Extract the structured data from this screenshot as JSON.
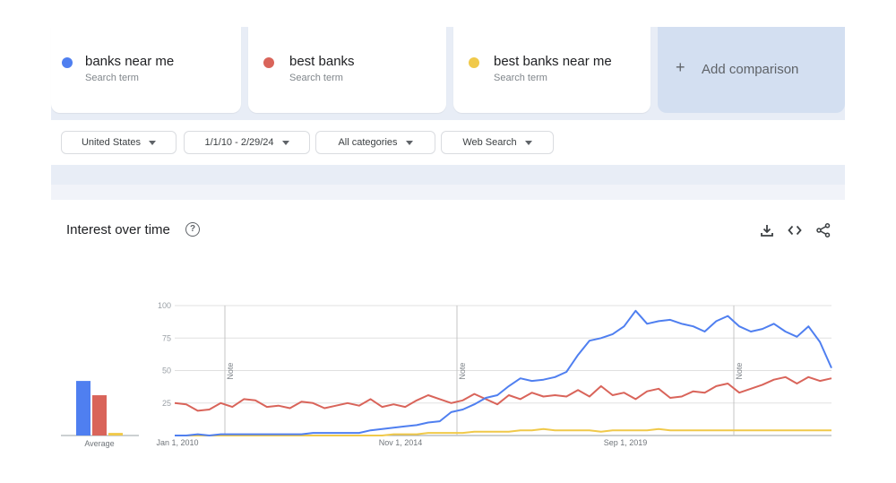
{
  "terms": [
    {
      "label": "banks near me",
      "sublabel": "Search term",
      "color": "#4f7ff0"
    },
    {
      "label": "best banks",
      "sublabel": "Search term",
      "color": "#d9645a"
    },
    {
      "label": "best banks near me",
      "sublabel": "Search term",
      "color": "#f0c94a"
    }
  ],
  "add_comparison": {
    "label": "Add comparison",
    "icon": "plus-icon"
  },
  "filters": {
    "region": "United States",
    "date_range": "1/1/10 - 2/29/24",
    "category": "All categories",
    "search_type": "Web Search"
  },
  "panel": {
    "title": "Interest over time",
    "help_icon": "help-circle-icon",
    "actions": [
      "download-icon",
      "embed-code-icon",
      "share-icon"
    ]
  },
  "chart_data": {
    "type": "line",
    "title": "Interest over time",
    "xlabel": "",
    "ylabel": "",
    "ylim": [
      0,
      100
    ],
    "yticks": [
      "100",
      "75",
      "50",
      "25"
    ],
    "xtick_labels": [
      "Jan 1, 2010",
      "Nov 1, 2014",
      "Sep 1, 2019"
    ],
    "note_markers": [
      "Note",
      "Note",
      "Note"
    ],
    "grid": true,
    "legend": "top cards",
    "average_label": "Average",
    "averages": [
      {
        "name": "banks near me",
        "value": 42
      },
      {
        "name": "best banks",
        "value": 31
      },
      {
        "name": "best banks near me",
        "value": 2
      }
    ],
    "x": [
      "2010-01",
      "2010-04",
      "2010-07",
      "2010-10",
      "2011-01",
      "2011-04",
      "2011-07",
      "2011-10",
      "2012-01",
      "2012-04",
      "2012-07",
      "2012-10",
      "2013-01",
      "2013-04",
      "2013-07",
      "2013-10",
      "2014-01",
      "2014-04",
      "2014-07",
      "2014-10",
      "2015-01",
      "2015-04",
      "2015-07",
      "2015-10",
      "2016-01",
      "2016-04",
      "2016-07",
      "2016-10",
      "2017-01",
      "2017-04",
      "2017-07",
      "2017-10",
      "2018-01",
      "2018-04",
      "2018-07",
      "2018-10",
      "2019-01",
      "2019-04",
      "2019-07",
      "2019-10",
      "2020-01",
      "2020-04",
      "2020-07",
      "2020-10",
      "2021-01",
      "2021-04",
      "2021-07",
      "2021-10",
      "2022-01",
      "2022-04",
      "2022-07",
      "2022-10",
      "2023-01",
      "2023-04",
      "2023-07",
      "2023-10",
      "2024-01",
      "2024-02"
    ],
    "series": [
      {
        "name": "banks near me",
        "color": "#4f7ff0",
        "values": [
          0,
          0,
          1,
          0,
          1,
          1,
          1,
          1,
          1,
          1,
          1,
          1,
          2,
          2,
          2,
          2,
          2,
          4,
          5,
          6,
          7,
          8,
          10,
          11,
          18,
          20,
          24,
          29,
          31,
          38,
          44,
          42,
          43,
          45,
          49,
          62,
          73,
          75,
          78,
          84,
          96,
          86,
          88,
          89,
          86,
          84,
          80,
          88,
          92,
          84,
          80,
          82,
          86,
          80,
          76,
          84,
          72,
          52
        ]
      },
      {
        "name": "best banks",
        "color": "#d9645a",
        "values": [
          25,
          24,
          19,
          20,
          25,
          22,
          28,
          27,
          22,
          23,
          21,
          26,
          25,
          21,
          23,
          25,
          23,
          28,
          22,
          24,
          22,
          27,
          31,
          28,
          25,
          27,
          32,
          28,
          24,
          31,
          28,
          33,
          30,
          31,
          30,
          35,
          30,
          38,
          31,
          33,
          28,
          34,
          36,
          29,
          30,
          34,
          33,
          38,
          40,
          33,
          36,
          39,
          43,
          45,
          40,
          45,
          42,
          44
        ]
      },
      {
        "name": "best banks near me",
        "color": "#f0c94a",
        "values": [
          0,
          0,
          0,
          0,
          0,
          0,
          0,
          0,
          0,
          0,
          0,
          0,
          0,
          0,
          0,
          0,
          0,
          0,
          0,
          1,
          1,
          1,
          2,
          2,
          2,
          2,
          3,
          3,
          3,
          3,
          4,
          4,
          5,
          4,
          4,
          4,
          4,
          3,
          4,
          4,
          4,
          4,
          5,
          4,
          4,
          4,
          4,
          4,
          4,
          4,
          4,
          4,
          4,
          4,
          4,
          4,
          4,
          4
        ]
      }
    ]
  }
}
